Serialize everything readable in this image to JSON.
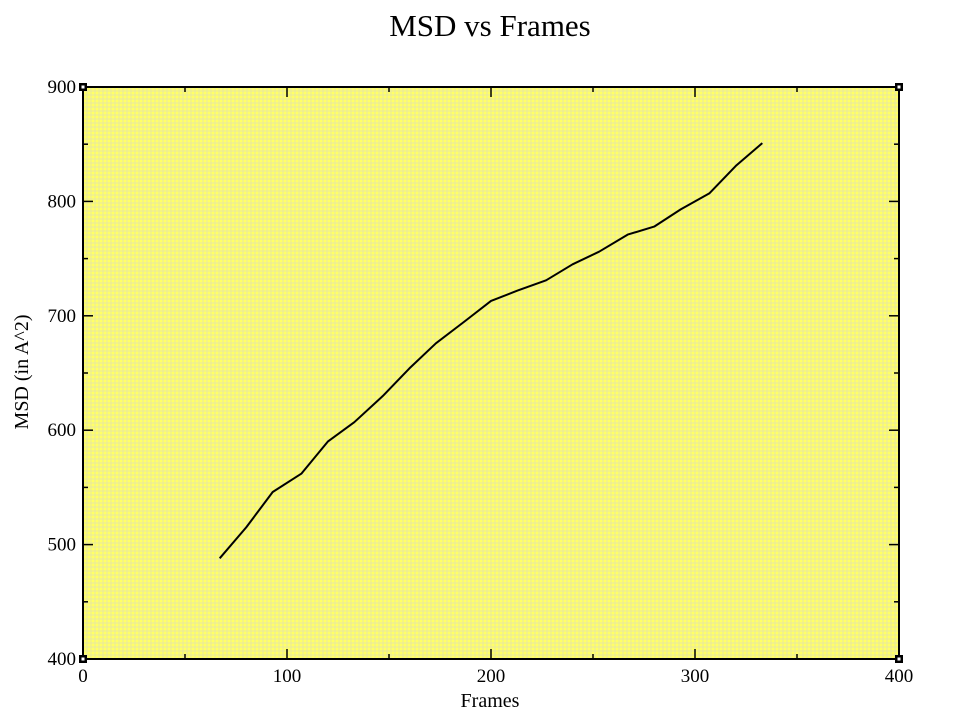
{
  "chart_data": {
    "type": "line",
    "title": "MSD vs Frames",
    "xlabel": "Frames",
    "ylabel": "MSD (in A^2)",
    "xlim": [
      0,
      400
    ],
    "ylim": [
      400,
      900
    ],
    "xticks": [
      0,
      100,
      200,
      300,
      400
    ],
    "yticks": [
      400,
      500,
      600,
      700,
      800,
      900
    ],
    "grid": true,
    "legend": "none",
    "colors": {
      "plot_background": "#ffff66",
      "grid": "#e8e8a0",
      "line": "#000000"
    },
    "series": [
      {
        "x": [
          67,
          80,
          93,
          107,
          120,
          133,
          147,
          160,
          173,
          187,
          200,
          213,
          227,
          240,
          253,
          267,
          280,
          293,
          307,
          320,
          333
        ],
        "y": [
          488,
          515,
          546,
          562,
          590,
          607,
          630,
          654,
          676,
          695,
          713,
          722,
          731,
          745,
          756,
          771,
          778,
          793,
          807,
          831,
          851
        ]
      }
    ]
  }
}
